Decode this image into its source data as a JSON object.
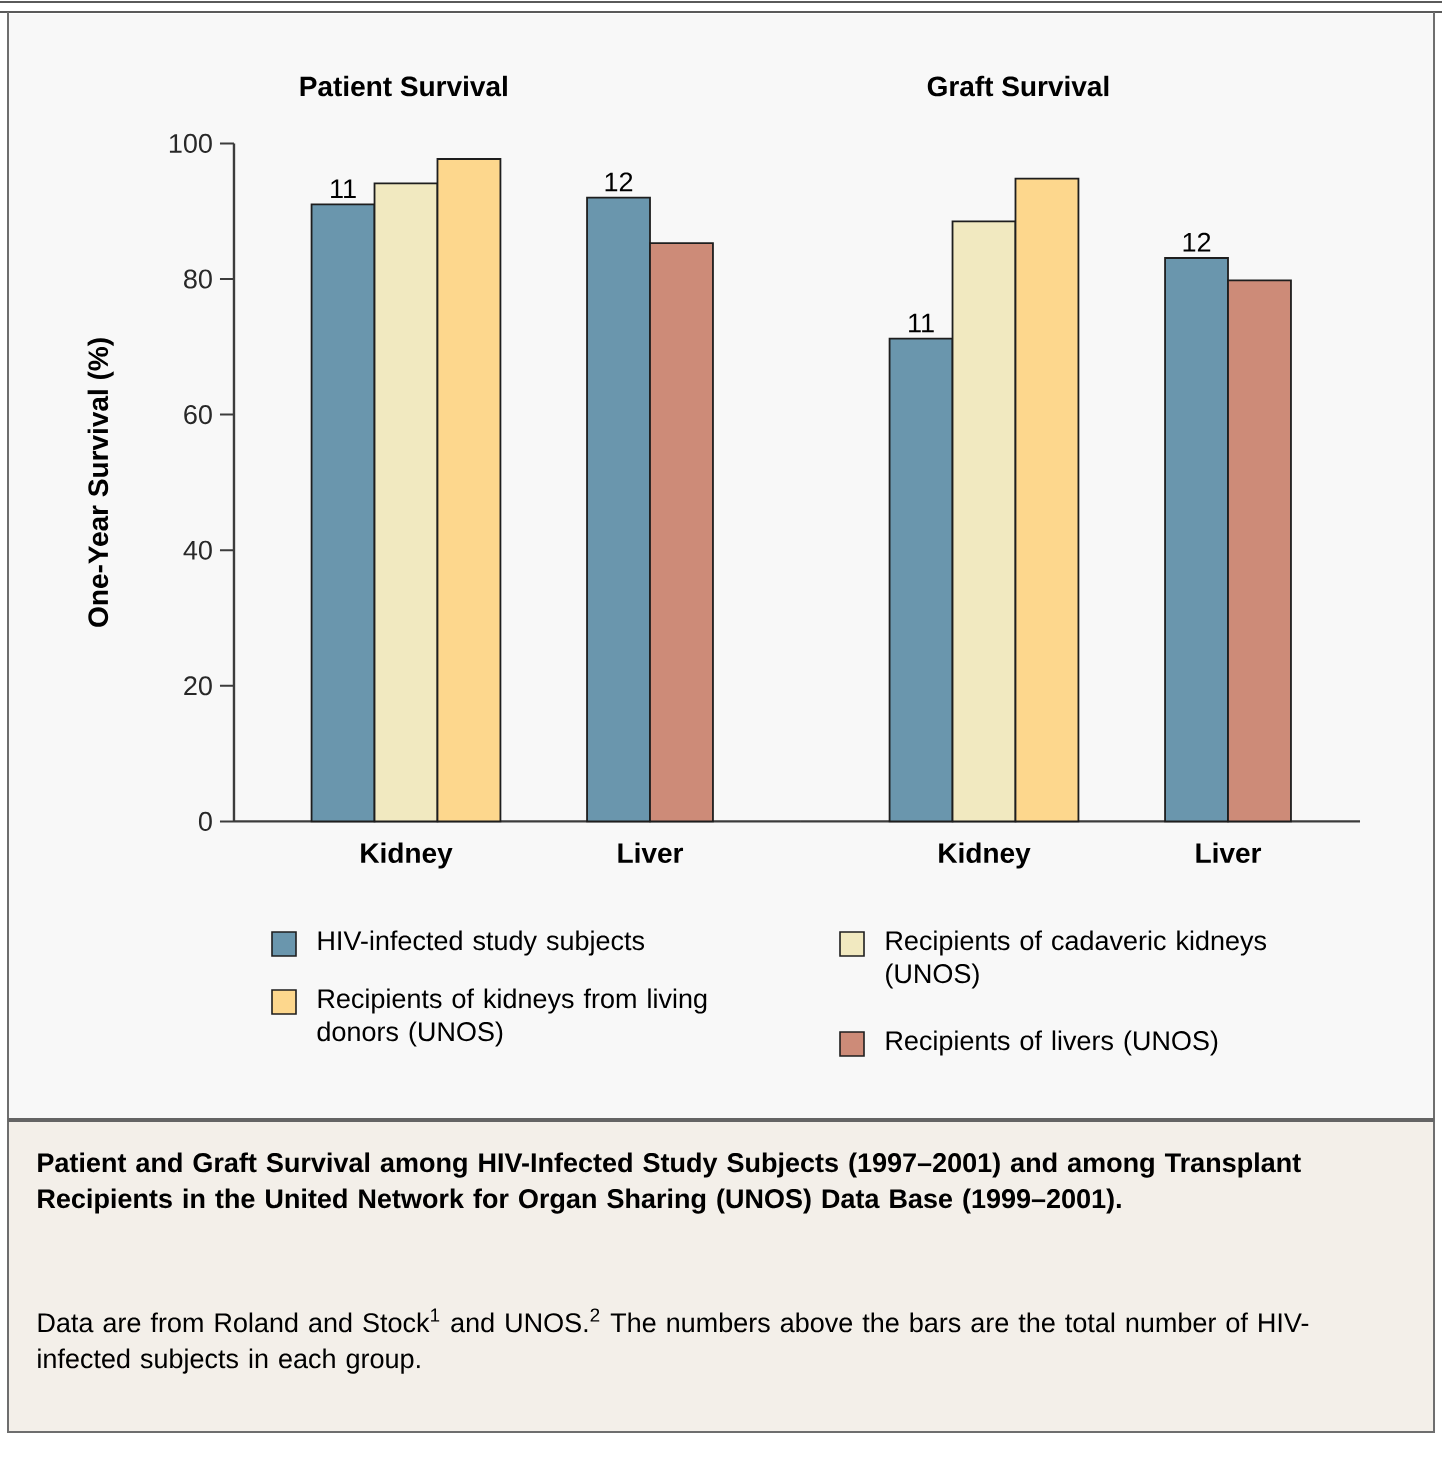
{
  "chart_data": [
    {
      "type": "bar",
      "title": "Patient Survival",
      "ylabel": "One-Year Survival (%)",
      "categories": [
        "Kidney",
        "Liver"
      ],
      "series": [
        {
          "name": "HIV-infected study subjects",
          "color": "#6a96ad",
          "values": [
            91,
            92
          ]
        },
        {
          "name": "Recipients of cadaveric kidneys (UNOS)",
          "color": "#f1e9c0",
          "values": [
            94.1,
            null
          ]
        },
        {
          "name": "Recipients of kidneys from living donors (UNOS)",
          "color": "#fdd78d",
          "values": [
            97.7,
            null
          ]
        },
        {
          "name": "Recipients of livers (UNOS)",
          "color": "#cd8b78",
          "values": [
            null,
            85.3
          ]
        }
      ],
      "ylim": [
        0,
        100
      ],
      "yticks": [
        0,
        20,
        40,
        60,
        80,
        100
      ],
      "legend": "bottom",
      "annotations": [
        "11",
        "12",
        "Patient and Graft Survival among HIV-Infected Study Subjects (1997–2001) and among Transplant Recipients in the United Network for Organ Sharing (UNOS) Data Base (1999–2001).",
        "Data are from Roland and Stock$^{1}$ and UNOS.$^{2}$ The numbers above the bars are the total number of HIV-infected subjects in each group."
      ]
    },
    {
      "type": "bar",
      "title": "Graft Survival",
      "categories": [
        "Kidney",
        "Liver"
      ],
      "series": [
        {
          "color": "#6a96ad",
          "values": [
            71.2,
            83.1
          ]
        },
        {
          "color": "#f1e9c0",
          "values": [
            88.5,
            null
          ]
        },
        {
          "color": "#fdd78d",
          "values": [
            94.8,
            null
          ]
        },
        {
          "color": "#cd8b78",
          "values": [
            null,
            79.8
          ]
        }
      ],
      "ylim": [
        0,
        100
      ],
      "yticks": [
        0,
        20,
        40,
        60,
        80,
        100
      ],
      "tick_labels": "x",
      "annotations": [
        "11",
        "12"
      ]
    }
  ]
}
